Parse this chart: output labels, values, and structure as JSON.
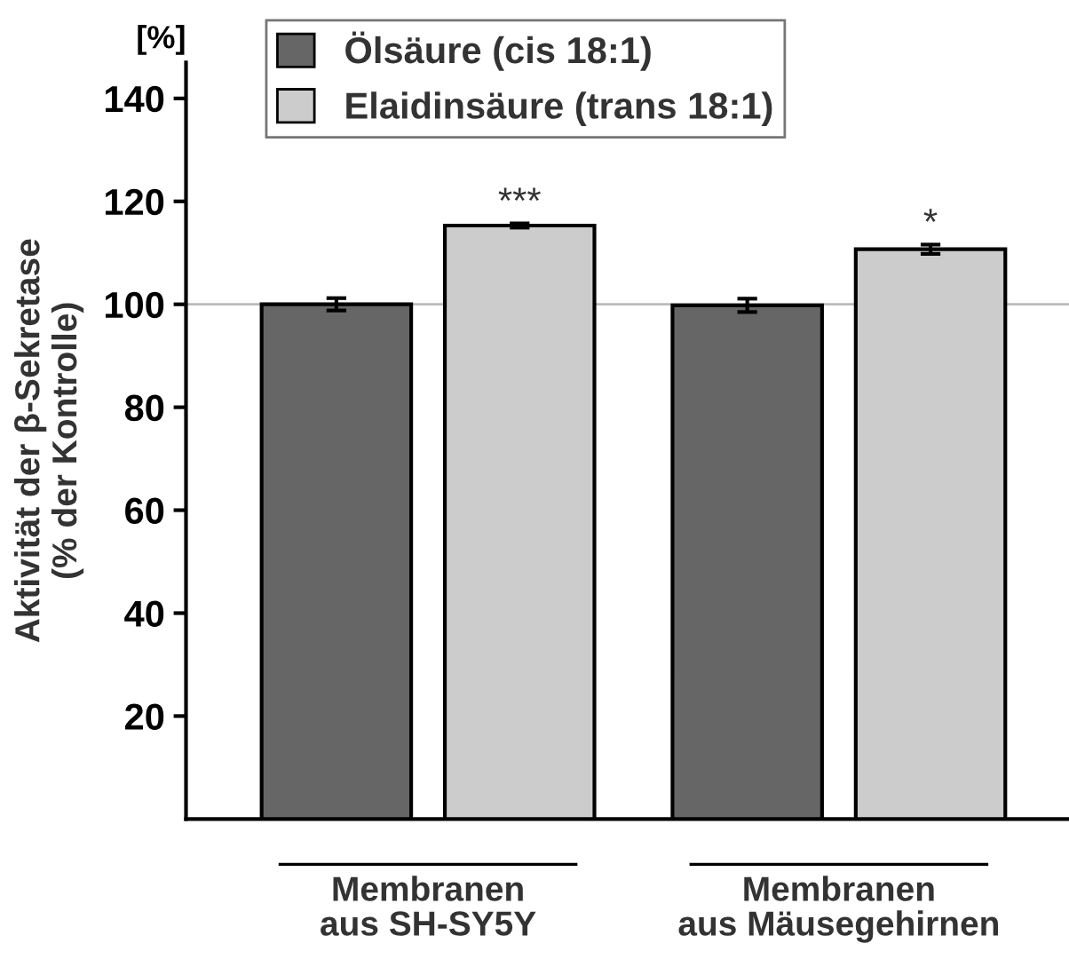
{
  "chart_data": {
    "type": "bar",
    "categories": [
      "Membranen\naus SH-SY5Y",
      "Membranen\naus Mäusegehirnen"
    ],
    "ylabel": "Aktivität der β-Sekretase\n(% der Kontrolle)",
    "series": [
      {
        "name": "Ölsäure (cis 18:1)",
        "color": "#666666",
        "values": [
          100,
          99.8
        ],
        "errors": [
          1.2,
          1.3
        ]
      },
      {
        "name": "Elaidinsäure (trans 18:1)",
        "color": "#cccccc",
        "values": [
          115.3,
          110.7
        ],
        "errors": [
          0.4,
          0.9
        ]
      }
    ],
    "ylim": [
      0,
      147
    ],
    "yticks": [
      20,
      40,
      60,
      80,
      100,
      120,
      140
    ],
    "ref_lines": [
      {
        "axis": "y",
        "value": 100,
        "color": "#bbbbbb"
      }
    ],
    "annotations": [
      "[%]",
      "***",
      "*"
    ],
    "legend": "top left",
    "grid": false
  }
}
